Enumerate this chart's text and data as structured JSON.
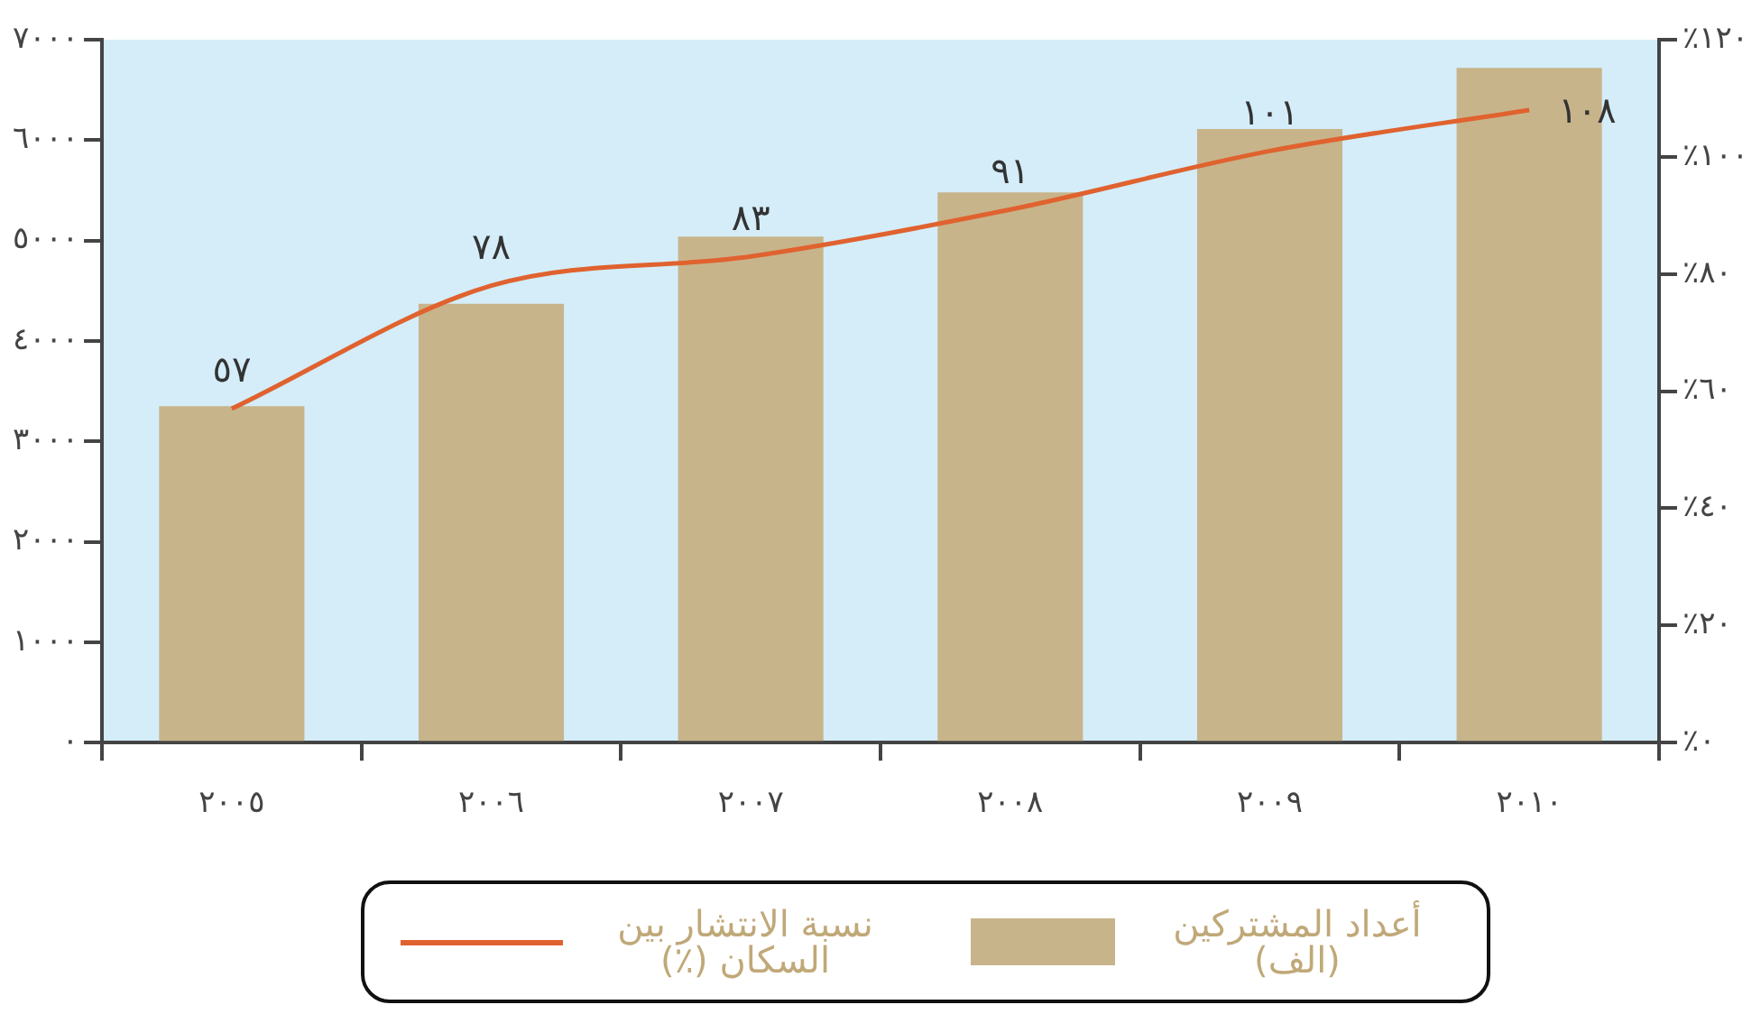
{
  "chart_data": {
    "type": "bar",
    "categories": [
      "٢٠٠٥",
      "٢٠٠٦",
      "٢٠٠٧",
      "٢٠٠٨",
      "٢٠٠٩",
      "٢٠١٠"
    ],
    "series": [
      {
        "name": "أعداد المشتركين (الف)",
        "color": "#c8b48a",
        "values": [
          3350,
          4370,
          5040,
          5480,
          6110,
          6720
        ]
      },
      {
        "name": "نسبة الانتشار بين السكان (٪)",
        "type": "line",
        "axis": "y2",
        "color": "#e0622f",
        "values": [
          57,
          78,
          83,
          91,
          101,
          108
        ],
        "value_labels": [
          "٥٧",
          "٧٨",
          "٨٣",
          "٩١",
          "١٠١",
          "١٠٨"
        ]
      }
    ],
    "ylim": [
      0,
      7000
    ],
    "yticks": [
      {
        "value": 0,
        "label": "٠"
      },
      {
        "value": 1000,
        "label": "١٠٠٠"
      },
      {
        "value": 2000,
        "label": "٢٠٠٠"
      },
      {
        "value": 3000,
        "label": "٣٠٠٠"
      },
      {
        "value": 4000,
        "label": "٤٠٠٠"
      },
      {
        "value": 5000,
        "label": "٥٠٠٠"
      },
      {
        "value": 6000,
        "label": "٦٠٠٠"
      },
      {
        "value": 7000,
        "label": "٧٠٠٠"
      }
    ],
    "y2lim": [
      0,
      120
    ],
    "y2ticks": [
      {
        "value": 0,
        "label": "٪٠"
      },
      {
        "value": 20,
        "label": "٪٢٠"
      },
      {
        "value": 40,
        "label": "٪٤٠"
      },
      {
        "value": 60,
        "label": "٪٦٠"
      },
      {
        "value": 80,
        "label": "٪٨٠"
      },
      {
        "value": 100,
        "label": "٪١٠٠"
      },
      {
        "value": 120,
        "label": "٪١٢٠"
      }
    ],
    "grid": false,
    "legend": "bottom",
    "marker": "none"
  }
}
